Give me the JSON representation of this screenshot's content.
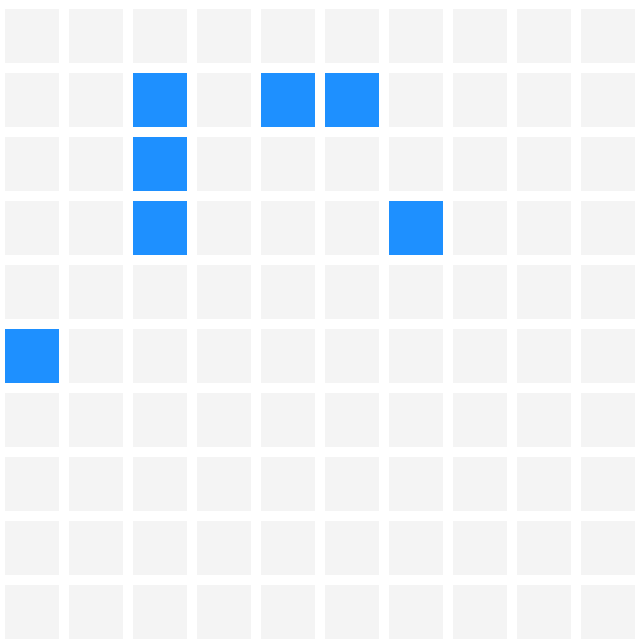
{
  "grid": {
    "rows": 10,
    "cols": 10,
    "filled": [
      [
        1,
        2
      ],
      [
        1,
        4
      ],
      [
        1,
        5
      ],
      [
        2,
        2
      ],
      [
        3,
        2
      ],
      [
        3,
        6
      ],
      [
        5,
        0
      ]
    ],
    "colors": {
      "filled": "#1e90ff",
      "empty": "#f4f4f4",
      "background": "#ffffff"
    }
  }
}
